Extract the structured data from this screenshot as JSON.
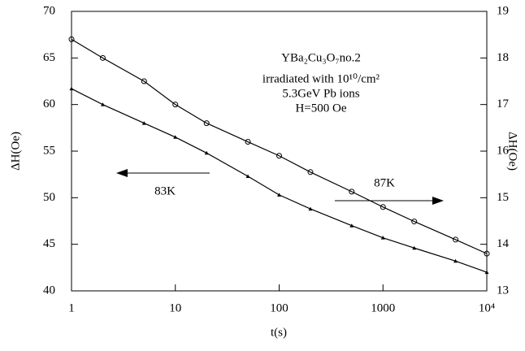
{
  "chart_data": {
    "type": "line",
    "x_label": "t(s)",
    "y_label": "ΔH(Oe)",
    "y2_label": "ΔH(Oe)",
    "x_log": true,
    "x": [
      1,
      2,
      5,
      10,
      20,
      50,
      100,
      200,
      500,
      1000,
      2000,
      5000,
      10000
    ],
    "series": [
      {
        "name": "87K",
        "color": "#000000",
        "marker": "circle",
        "axis": "y2",
        "values": [
          18.4,
          18.0,
          17.5,
          17.0,
          16.6,
          16.2,
          15.9,
          15.55,
          15.13,
          14.8,
          14.49,
          14.1,
          13.8
        ]
      },
      {
        "name": "83K",
        "color": "#000000",
        "marker": "triangle",
        "values": [
          61.7,
          60.0,
          58.0,
          56.5,
          54.8,
          52.3,
          50.3,
          48.8,
          47.0,
          45.7,
          44.6,
          43.2,
          42.0
        ]
      }
    ],
    "xlim": [
      1,
      10000
    ],
    "xticks": [
      1,
      10,
      100,
      1000,
      {
        "value": 10000,
        "label": "10⁴"
      }
    ],
    "ylim": [
      40,
      70
    ],
    "yticks": [
      40,
      45,
      50,
      55,
      60,
      65,
      70
    ],
    "y2lim": [
      13,
      19
    ],
    "y2ticks": [
      13,
      14,
      15,
      16,
      17,
      18,
      19
    ],
    "annotations": [
      "YBa₂Cu₃O₇no.2",
      "irradiated with 10¹⁰/cm²",
      "5.3GeV Pb ions",
      "H=500 Oe"
    ]
  }
}
